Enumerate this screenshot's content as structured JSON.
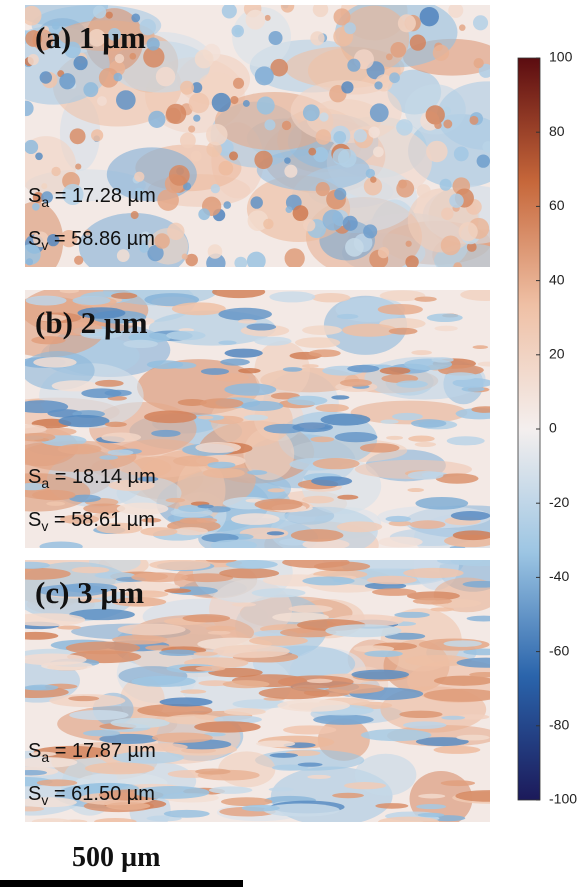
{
  "panels": [
    {
      "label": "(a) 1 µm",
      "sa": {
        "symbol": "S",
        "subscript": "a",
        "text": " = 17.28 µm"
      },
      "sv": {
        "symbol": "S",
        "subscript": "v",
        "text": " = 58.86 µm"
      }
    },
    {
      "label": "(b) 2 µm",
      "sa": {
        "symbol": "S",
        "subscript": "a",
        "text": " = 18.14 µm"
      },
      "sv": {
        "symbol": "S",
        "subscript": "v",
        "text": " = 58.61 µm"
      }
    },
    {
      "label": "(c) 3 µm",
      "sa": {
        "symbol": "S",
        "subscript": "a",
        "text": " = 17.87 µm"
      },
      "sv": {
        "symbol": "S",
        "subscript": "v",
        "text": " = 61.50 µm"
      }
    }
  ],
  "colorbar": {
    "lim": [
      -100,
      100
    ],
    "ticks": [
      100,
      80,
      60,
      40,
      20,
      0,
      -20,
      -40,
      -60,
      -80,
      -100
    ],
    "colormap": [
      "#1c1a5a",
      "#2a64ab",
      "#9cc5e3",
      "#f4efee",
      "#efc0a5",
      "#c6673a",
      "#5b0c10"
    ]
  },
  "scale_bar": {
    "label": "500 µm"
  }
}
